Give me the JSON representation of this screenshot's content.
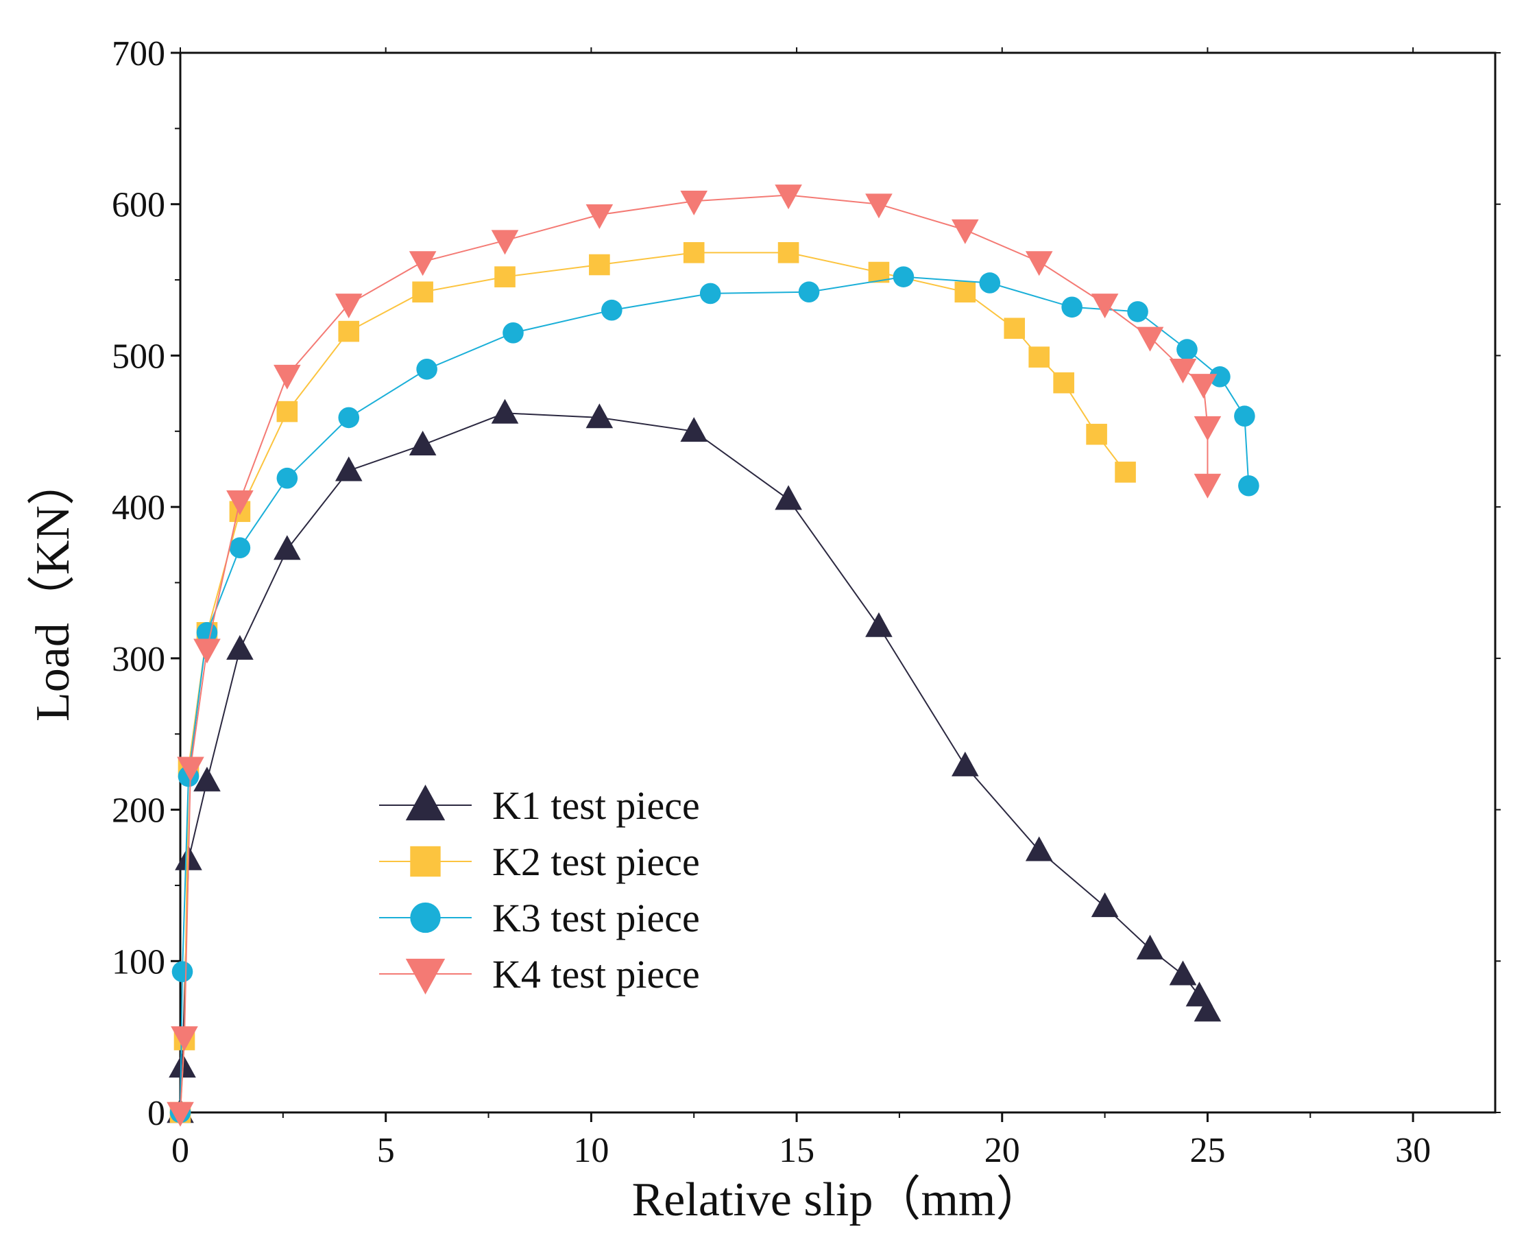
{
  "chart_data": {
    "type": "line",
    "title": "",
    "xlabel": "Relative slip（mm）",
    "ylabel": "Load（KN）",
    "xlim": [
      0,
      32
    ],
    "ylim": [
      0,
      700
    ],
    "xticks": [
      0,
      5,
      10,
      15,
      20,
      25,
      30
    ],
    "yticks": [
      0,
      100,
      200,
      300,
      400,
      500,
      600,
      700
    ],
    "xtick_labels": [
      "0",
      "5",
      "10",
      "15",
      "20",
      "25",
      "30"
    ],
    "ytick_labels": [
      "0",
      "100",
      "200",
      "300",
      "400",
      "500",
      "600",
      "700"
    ],
    "grid": false,
    "legend_position": "lower-left",
    "series": [
      {
        "name": "K1 test piece",
        "marker": "triangle-up",
        "color": "#2b2840",
        "x": [
          0,
          0.05,
          0.2,
          0.65,
          1.45,
          2.6,
          4.1,
          5.9,
          7.9,
          10.2,
          12.5,
          14.8,
          17.0,
          19.1,
          20.9,
          22.5,
          23.6,
          24.4,
          24.8,
          25.0
        ],
        "y": [
          0,
          30,
          167,
          219,
          306,
          372,
          424,
          441,
          462,
          459,
          450,
          405,
          321,
          229,
          173,
          136,
          108,
          91,
          77,
          67
        ]
      },
      {
        "name": "K2 test piece",
        "marker": "square",
        "color": "#fcc43f",
        "x": [
          0,
          0.1,
          0.2,
          0.65,
          1.45,
          2.6,
          4.1,
          5.9,
          7.9,
          10.2,
          12.5,
          14.8,
          17.0,
          19.1,
          20.3,
          20.9,
          21.5,
          22.3,
          23.0
        ],
        "y": [
          0,
          48,
          228,
          317,
          397,
          463,
          516,
          542,
          552,
          560,
          568,
          568,
          555,
          542,
          518,
          499,
          482,
          448,
          423
        ]
      },
      {
        "name": "K3 test piece",
        "marker": "circle",
        "color": "#1aafd8",
        "x": [
          0,
          0.05,
          0.2,
          0.65,
          1.45,
          2.6,
          4.1,
          6.0,
          8.1,
          10.5,
          12.9,
          15.3,
          17.6,
          19.7,
          21.7,
          23.3,
          24.5,
          25.3,
          25.9,
          26.0
        ],
        "y": [
          0,
          93,
          222,
          317,
          373,
          419,
          459,
          491,
          515,
          530,
          541,
          542,
          552,
          548,
          532,
          529,
          504,
          486,
          460,
          414
        ]
      },
      {
        "name": "K4 test piece",
        "marker": "triangle-down",
        "color": "#f47a74",
        "x": [
          0,
          0.1,
          0.25,
          0.65,
          1.45,
          2.6,
          4.1,
          5.9,
          7.9,
          10.2,
          12.5,
          14.8,
          17.0,
          19.1,
          20.9,
          22.5,
          23.6,
          24.4,
          24.9,
          25.0,
          25.0
        ],
        "y": [
          0,
          50,
          228,
          306,
          404,
          487,
          534,
          562,
          576,
          593,
          602,
          606,
          600,
          583,
          562,
          534,
          512,
          491,
          481,
          453,
          415
        ]
      }
    ]
  }
}
